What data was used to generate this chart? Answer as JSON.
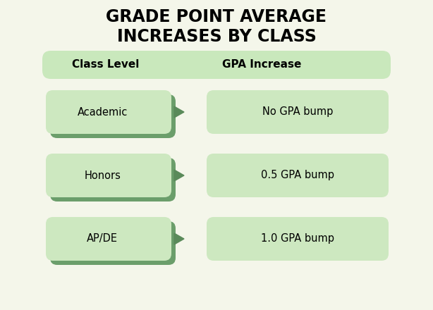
{
  "title_line1": "GRADE POINT AVERAGE",
  "title_line2": "INCREASES BY CLASS",
  "bg_color": "#f4f6ea",
  "header_bg": "#c9e8bc",
  "box_light": "#cde8c0",
  "box_dark": "#6b9e6b",
  "arrow_color": "#5a8a5a",
  "header_col1": "Class Level",
  "header_col2": "GPA Increase",
  "rows": [
    {
      "class": "Academic",
      "gpa": "No GPA bump"
    },
    {
      "class": "Honors",
      "gpa": "0.5 GPA bump"
    },
    {
      "class": "AP/DE",
      "gpa": "1.0 GPA bump"
    }
  ],
  "title_fontsize": 17,
  "header_fontsize": 11,
  "row_fontsize": 10.5,
  "fig_w": 6.14,
  "fig_h": 4.4,
  "dpi": 100
}
